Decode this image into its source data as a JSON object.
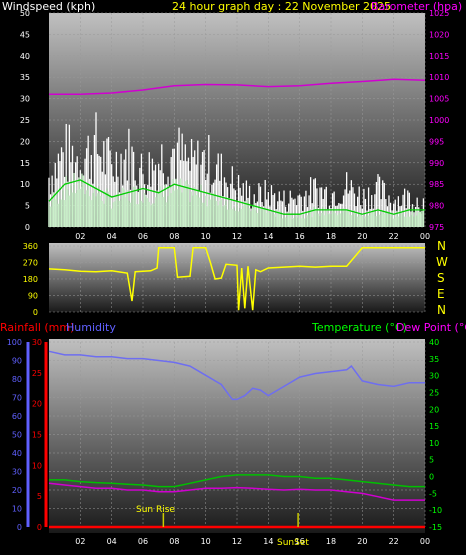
{
  "header": {
    "wind_title": "Windspeed (kph)",
    "graph_title": "24 hour graph day : 22 November 2025",
    "baro_title": "Barometer (hpa)"
  },
  "labels": {
    "rainfall": "Rainfall (mm)",
    "humidity": "Humidity",
    "temperature": "Temperature (°C)",
    "dewpoint": "Dew Point (°C)",
    "compass": [
      "N",
      "W",
      "S",
      "E",
      "N"
    ],
    "sunrise": "Sun Rise",
    "sunset": "SunSet"
  },
  "colors": {
    "wind_gust": "#ffffff",
    "wind_avg": "#c8f0c8",
    "wind_dark": "#00cc00",
    "barometer": "#d000d0",
    "direction": "#ffff00",
    "humidity": "#6e6ef0",
    "temperature": "#00c000",
    "dewpoint": "#d000d0",
    "rain": "#ff0000",
    "rain_axis": "#ff0000",
    "humidity_axis": "#6060ff",
    "temp_axis": "#00ff00",
    "dew_axis": "#ff00ff",
    "baro_axis": "#ff00ff"
  },
  "chart_data": [
    {
      "type": "line",
      "name": "wind_barometer",
      "x_ticks": [
        "02",
        "04",
        "06",
        "08",
        "10",
        "12",
        "14",
        "16",
        "18",
        "20",
        "22",
        "00"
      ],
      "x_range_hours": [
        0,
        24
      ],
      "left_axis": {
        "ticks": [
          0,
          5,
          10,
          15,
          20,
          25,
          30,
          35,
          40,
          45,
          50
        ],
        "ylim": [
          0,
          50
        ]
      },
      "right_axis": {
        "ticks": [
          975,
          980,
          985,
          990,
          995,
          1000,
          1005,
          1010,
          1015,
          1020,
          1025
        ],
        "ylim": [
          975,
          1025
        ]
      },
      "series": [
        {
          "name": "Barometer (hpa)",
          "axis": "right",
          "points": [
            [
              0,
              1006
            ],
            [
              2,
              1006
            ],
            [
              4,
              1006.3
            ],
            [
              6,
              1007
            ],
            [
              8,
              1008
            ],
            [
              10,
              1008.3
            ],
            [
              12,
              1008.2
            ],
            [
              14,
              1007.8
            ],
            [
              16,
              1008
            ],
            [
              18,
              1008.6
            ],
            [
              20,
              1009
            ],
            [
              22,
              1009.5
            ],
            [
              24,
              1009.3
            ]
          ]
        },
        {
          "name": "Windspeed gust",
          "axis": "left",
          "points": [
            [
              0,
              15
            ],
            [
              1,
              22
            ],
            [
              2,
              20
            ],
            [
              3,
              24
            ],
            [
              4,
              18
            ],
            [
              5,
              22
            ],
            [
              6,
              16
            ],
            [
              7,
              20
            ],
            [
              8,
              23
            ],
            [
              9,
              18
            ],
            [
              10,
              20
            ],
            [
              11,
              16
            ],
            [
              12,
              12
            ],
            [
              13,
              9
            ],
            [
              14,
              10
            ],
            [
              15,
              8
            ],
            [
              16,
              9
            ],
            [
              17,
              11
            ],
            [
              18,
              10
            ],
            [
              19,
              12
            ],
            [
              20,
              9
            ],
            [
              21,
              11
            ],
            [
              22,
              8
            ],
            [
              23,
              9
            ],
            [
              24,
              7
            ]
          ]
        },
        {
          "name": "Windspeed average",
          "axis": "left",
          "points": [
            [
              0,
              6
            ],
            [
              1,
              10
            ],
            [
              2,
              11
            ],
            [
              3,
              9
            ],
            [
              4,
              7
            ],
            [
              5,
              8
            ],
            [
              6,
              9
            ],
            [
              7,
              8
            ],
            [
              8,
              10
            ],
            [
              9,
              9
            ],
            [
              10,
              8
            ],
            [
              11,
              7
            ],
            [
              12,
              6
            ],
            [
              13,
              5
            ],
            [
              14,
              4
            ],
            [
              15,
              3
            ],
            [
              16,
              3
            ],
            [
              17,
              4
            ],
            [
              18,
              4
            ],
            [
              19,
              4
            ],
            [
              20,
              3
            ],
            [
              21,
              4
            ],
            [
              22,
              3
            ],
            [
              23,
              4
            ],
            [
              24,
              4
            ]
          ]
        }
      ]
    },
    {
      "type": "line",
      "name": "wind_direction",
      "x_range_hours": [
        0,
        24
      ],
      "left_axis": {
        "ticks": [
          0,
          90,
          180,
          270,
          360
        ],
        "ylim": [
          0,
          360
        ]
      },
      "series": [
        {
          "name": "Direction",
          "points": [
            [
              0,
              235
            ],
            [
              1,
              230
            ],
            [
              2,
              222
            ],
            [
              3,
              220
            ],
            [
              4,
              225
            ],
            [
              5,
              212
            ],
            [
              5.3,
              60
            ],
            [
              5.5,
              220
            ],
            [
              6,
              222
            ],
            [
              6.5,
              225
            ],
            [
              6.9,
              240
            ],
            [
              7,
              350
            ],
            [
              8,
              350
            ],
            [
              8.2,
              190
            ],
            [
              9,
              195
            ],
            [
              9.2,
              350
            ],
            [
              10,
              350
            ],
            [
              10.3,
              270
            ],
            [
              10.6,
              180
            ],
            [
              11,
              185
            ],
            [
              11.3,
              260
            ],
            [
              12,
              255
            ],
            [
              12.1,
              10
            ],
            [
              12.3,
              240
            ],
            [
              12.5,
              20
            ],
            [
              12.7,
              250
            ],
            [
              13,
              10
            ],
            [
              13.2,
              230
            ],
            [
              13.5,
              220
            ],
            [
              14,
              240
            ],
            [
              15,
              245
            ],
            [
              16,
              250
            ],
            [
              17,
              245
            ],
            [
              18,
              250
            ],
            [
              19,
              250
            ],
            [
              20,
              350
            ],
            [
              24,
              350
            ]
          ]
        }
      ]
    },
    {
      "type": "line",
      "name": "temperature_humidity_rain",
      "x_ticks": [
        "02",
        "04",
        "06",
        "08",
        "10",
        "12",
        "14",
        "16",
        "18",
        "20",
        "22",
        "00"
      ],
      "x_range_hours": [
        0,
        24
      ],
      "rain_axis": {
        "ticks": [
          0,
          5,
          10,
          15,
          20,
          25,
          30
        ],
        "ylim": [
          0,
          30
        ]
      },
      "humidity_axis": {
        "ticks": [
          0,
          10,
          20,
          30,
          40,
          50,
          60,
          70,
          80,
          90,
          100
        ],
        "ylim": [
          0,
          100
        ]
      },
      "temp_axis": {
        "ticks": [
          -15,
          -10,
          -5,
          0,
          5,
          10,
          15,
          20,
          25,
          30,
          35,
          40
        ],
        "ylim": [
          -15,
          40
        ]
      },
      "series": [
        {
          "name": "Humidity",
          "axis": "humidity",
          "points": [
            [
              0,
              95
            ],
            [
              1,
              93
            ],
            [
              2,
              93
            ],
            [
              3,
              92
            ],
            [
              4,
              92
            ],
            [
              5,
              91
            ],
            [
              6,
              91
            ],
            [
              7,
              90
            ],
            [
              8,
              89
            ],
            [
              9,
              87
            ],
            [
              10,
              82
            ],
            [
              11,
              77
            ],
            [
              11.7,
              69
            ],
            [
              12,
              69
            ],
            [
              12.5,
              71
            ],
            [
              13,
              75
            ],
            [
              13.5,
              74
            ],
            [
              14,
              71
            ],
            [
              15,
              76
            ],
            [
              16,
              81
            ],
            [
              17,
              83
            ],
            [
              18,
              84
            ],
            [
              19,
              85
            ],
            [
              19.3,
              87
            ],
            [
              20,
              79
            ],
            [
              21,
              77
            ],
            [
              22,
              76
            ],
            [
              23,
              78
            ],
            [
              24,
              78
            ]
          ]
        },
        {
          "name": "Temperature (°C)",
          "axis": "temp",
          "points": [
            [
              0,
              -1
            ],
            [
              1,
              -1
            ],
            [
              2,
              -1.5
            ],
            [
              3,
              -1.8
            ],
            [
              4,
              -2
            ],
            [
              5,
              -2.3
            ],
            [
              6,
              -2.5
            ],
            [
              7,
              -3
            ],
            [
              8,
              -3
            ],
            [
              9,
              -2
            ],
            [
              10,
              -1
            ],
            [
              11,
              0
            ],
            [
              12,
              0.5
            ],
            [
              13,
              0.5
            ],
            [
              14,
              0.5
            ],
            [
              15,
              0
            ],
            [
              16,
              0
            ],
            [
              17,
              -0.5
            ],
            [
              18,
              -0.5
            ],
            [
              19,
              -1
            ],
            [
              20,
              -1.5
            ],
            [
              21,
              -2
            ],
            [
              22,
              -2.5
            ],
            [
              23,
              -3
            ],
            [
              24,
              -3
            ]
          ]
        },
        {
          "name": "Dew Point (°C)",
          "axis": "temp",
          "points": [
            [
              0,
              -2
            ],
            [
              1,
              -2.5
            ],
            [
              2,
              -3
            ],
            [
              3,
              -3.5
            ],
            [
              4,
              -3.5
            ],
            [
              5,
              -4
            ],
            [
              6,
              -4
            ],
            [
              7,
              -4.5
            ],
            [
              8,
              -4.5
            ],
            [
              9,
              -4
            ],
            [
              10,
              -3.5
            ],
            [
              11,
              -3.5
            ],
            [
              12,
              -3.3
            ],
            [
              13,
              -3.5
            ],
            [
              14,
              -3.8
            ],
            [
              15,
              -4
            ],
            [
              16,
              -3.8
            ],
            [
              17,
              -4
            ],
            [
              18,
              -4
            ],
            [
              19,
              -4.5
            ],
            [
              20,
              -5
            ],
            [
              21,
              -6
            ],
            [
              22,
              -7
            ],
            [
              23,
              -7
            ],
            [
              24,
              -7
            ]
          ]
        },
        {
          "name": "Rainfall (mm)",
          "axis": "rain",
          "points": [
            [
              0,
              0
            ],
            [
              24,
              0
            ]
          ]
        }
      ],
      "markers": [
        {
          "label": "Sun Rise",
          "hour": 7.3
        },
        {
          "label": "SunSet",
          "hour": 15.9
        }
      ]
    }
  ]
}
